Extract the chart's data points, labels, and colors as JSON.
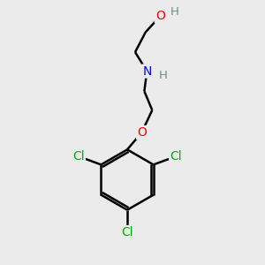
{
  "bg_color": "#ebebeb",
  "atom_colors": {
    "C": "#000000",
    "H": "#6b8e8e",
    "N": "#0000ff",
    "O": "#ff0000",
    "Cl": "#00aa00"
  },
  "bond_color": "#000000",
  "bond_width": 1.8,
  "figsize": [
    3.0,
    3.0
  ],
  "dpi": 100,
  "xlim": [
    0,
    10
  ],
  "ylim": [
    0,
    10
  ]
}
